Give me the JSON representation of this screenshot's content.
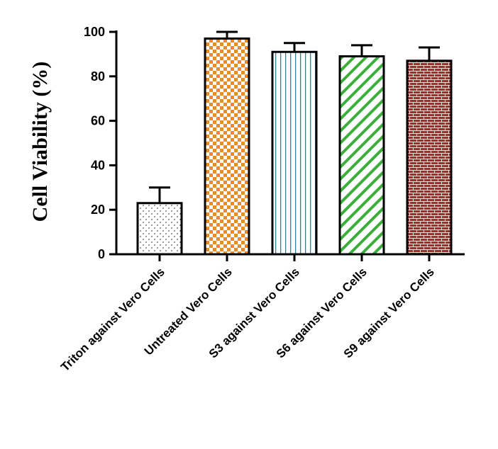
{
  "chart_data": {
    "type": "bar",
    "title": "",
    "xlabel": "",
    "ylabel": "Cell Viability (%)",
    "ylim": [
      0,
      100
    ],
    "yticks": [
      0,
      20,
      40,
      60,
      80,
      100
    ],
    "grid": false,
    "categories": [
      "Triton against Vero Cells",
      "Untreated Vero Cells",
      "S3 against Vero Cells",
      "S6 against Vero Cells",
      "S9 against Vero Cells"
    ],
    "values": [
      23,
      97,
      91,
      89,
      87
    ],
    "errors": [
      7,
      3,
      4,
      5,
      6
    ],
    "colors": [
      "#000000",
      "#e98a2b",
      "#3a7f9c",
      "#3cae3c",
      "#a52a2a"
    ],
    "patterns": [
      "dots",
      "checker",
      "vertical-lines",
      "diagonal-lines",
      "brick"
    ]
  }
}
